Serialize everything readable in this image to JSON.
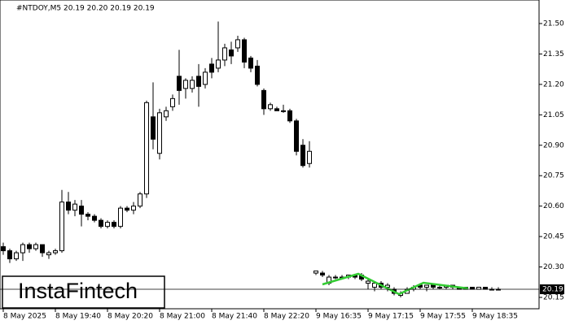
{
  "chart_data": {
    "type": "candlestick",
    "title": "#NTDOY,M5  20.19 20.20 20.19 20.19",
    "logo": "InstaFintech",
    "categories": [
      "8 May 2025",
      null,
      null,
      null,
      null,
      null,
      null,
      null,
      "8 May 19:40",
      null,
      null,
      null,
      null,
      null,
      null,
      null,
      "8 May 20:20",
      null,
      null,
      null,
      null,
      null,
      null,
      null,
      "8 May 21:00",
      null,
      null,
      null,
      null,
      null,
      null,
      null,
      "8 May 21:40",
      null,
      null,
      null,
      null,
      null,
      null,
      null,
      "8 May 22:20",
      null,
      null,
      null,
      null,
      null,
      null,
      null,
      "9 May 16:35",
      null,
      null,
      null,
      null,
      null,
      null,
      null,
      "9 May 17:15",
      null,
      null,
      null,
      null,
      null,
      null,
      null,
      "9 May 17:55",
      null,
      null,
      null,
      null,
      null,
      null,
      null,
      "9 May 18:35",
      null,
      null,
      null,
      null
    ],
    "open": [
      20.4,
      20.38,
      20.34,
      20.37,
      20.41,
      20.39,
      20.41,
      20.36,
      20.37,
      20.38,
      20.62,
      20.58,
      20.6,
      20.56,
      20.55,
      20.53,
      20.5,
      20.52,
      20.5,
      20.59,
      20.58,
      20.6,
      20.66,
      21.04,
      20.86,
      21.04,
      21.09,
      21.24,
      21.18,
      21.18,
      21.24,
      21.2,
      21.3,
      21.28,
      21.32,
      21.37,
      21.38,
      21.42,
      21.33,
      21.29,
      21.17,
      21.08,
      21.08,
      21.07,
      21.07,
      21.02,
      20.9,
      20.81,
      20.27,
      20.27,
      20.22,
      20.25,
      20.25,
      20.25,
      20.26,
      20.26,
      20.22,
      20.2,
      20.22,
      20.2,
      20.19,
      20.16,
      20.17,
      20.19,
      20.21,
      20.2,
      20.21,
      20.2,
      20.2,
      20.21,
      20.2,
      20.19,
      20.2,
      20.19,
      20.2,
      20.19,
      20.19
    ],
    "high": [
      20.42,
      20.39,
      20.38,
      20.42,
      20.42,
      20.42,
      20.41,
      20.38,
      20.39,
      20.68,
      20.67,
      20.63,
      20.63,
      20.57,
      20.56,
      20.54,
      20.53,
      20.53,
      20.6,
      20.6,
      20.62,
      20.67,
      21.12,
      21.21,
      21.08,
      21.09,
      21.15,
      21.37,
      21.23,
      21.24,
      21.3,
      21.28,
      21.33,
      21.51,
      21.4,
      21.41,
      21.44,
      21.43,
      21.34,
      21.32,
      21.18,
      21.11,
      21.09,
      21.1,
      21.08,
      21.03,
      20.93,
      20.92,
      20.28,
      20.28,
      20.26,
      20.26,
      20.26,
      20.26,
      20.26,
      20.27,
      20.24,
      20.23,
      20.23,
      20.22,
      20.2,
      20.18,
      20.2,
      20.21,
      20.22,
      20.21,
      20.21,
      20.21,
      20.21,
      20.21,
      20.2,
      20.2,
      20.2,
      20.2,
      20.2,
      20.2,
      20.2
    ],
    "low": [
      20.36,
      20.32,
      20.33,
      20.33,
      20.37,
      20.38,
      20.35,
      20.34,
      20.36,
      20.37,
      20.56,
      20.55,
      20.5,
      20.53,
      20.52,
      20.49,
      20.49,
      20.49,
      20.49,
      20.57,
      20.56,
      20.59,
      20.64,
      20.88,
      20.83,
      21.02,
      21.07,
      21.1,
      21.13,
      21.16,
      21.09,
      21.18,
      21.23,
      21.26,
      21.29,
      21.3,
      21.36,
      21.28,
      21.26,
      21.19,
      21.05,
      21.07,
      21.07,
      21.06,
      21.01,
      20.85,
      20.79,
      20.79,
      20.26,
      20.25,
      20.21,
      20.24,
      20.24,
      20.24,
      20.24,
      20.23,
      20.19,
      20.18,
      20.19,
      20.18,
      20.16,
      20.15,
      20.17,
      20.18,
      20.19,
      20.18,
      20.19,
      20.19,
      20.19,
      20.19,
      20.19,
      20.19,
      20.19,
      20.19,
      20.19,
      20.19,
      20.19
    ],
    "close": [
      20.38,
      20.34,
      20.37,
      20.41,
      20.39,
      20.41,
      20.37,
      20.37,
      20.38,
      20.62,
      20.58,
      20.61,
      20.56,
      20.55,
      20.53,
      20.5,
      20.52,
      20.5,
      20.59,
      20.58,
      20.6,
      20.66,
      21.11,
      20.93,
      21.06,
      21.07,
      21.13,
      21.17,
      21.22,
      21.22,
      21.19,
      21.26,
      21.26,
      21.32,
      21.38,
      21.34,
      21.42,
      21.31,
      21.28,
      21.2,
      21.08,
      21.1,
      21.07,
      21.07,
      21.02,
      20.87,
      20.8,
      20.87,
      20.28,
      20.26,
      20.25,
      20.25,
      20.25,
      20.26,
      20.25,
      20.24,
      20.23,
      20.22,
      20.2,
      20.21,
      20.17,
      20.17,
      20.19,
      20.2,
      20.2,
      20.21,
      20.2,
      20.2,
      20.21,
      20.2,
      20.19,
      20.2,
      20.19,
      20.2,
      20.19,
      20.19,
      20.19
    ],
    "last_price": 20.19,
    "ylim": [
      20.094,
      21.616
    ],
    "yticks": [
      {
        "value": 20.15,
        "label": "20.15"
      },
      {
        "value": 20.3,
        "label": "20.30"
      },
      {
        "value": 20.45,
        "label": "20.45"
      },
      {
        "value": 20.6,
        "label": "20.60"
      },
      {
        "value": 20.75,
        "label": "20.75"
      },
      {
        "value": 20.9,
        "label": "20.90"
      },
      {
        "value": 21.05,
        "label": "21.05"
      },
      {
        "value": 21.2,
        "label": "21.20"
      },
      {
        "value": 21.35,
        "label": "21.35"
      },
      {
        "value": 21.5,
        "label": "21.50"
      }
    ],
    "up_color": "#ffffff",
    "down_color": "#000000",
    "pattern_color": "#33cc33"
  }
}
